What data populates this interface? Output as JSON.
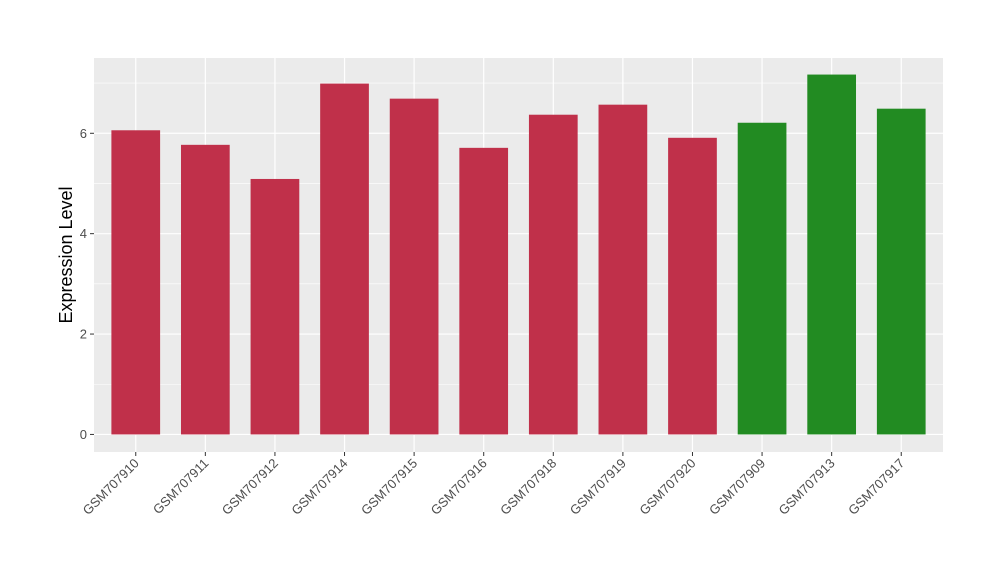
{
  "chart_data": {
    "type": "bar",
    "title": "",
    "xlabel": "",
    "ylabel": "Expression Level",
    "ylim": [
      -0.35,
      7.5
    ],
    "yticks": [
      0,
      2,
      4,
      6
    ],
    "grid": true,
    "legend": "none",
    "categories": [
      "GSM707910",
      "GSM707911",
      "GSM707912",
      "GSM707914",
      "GSM707915",
      "GSM707916",
      "GSM707918",
      "GSM707919",
      "GSM707920",
      "GSM707909",
      "GSM707913",
      "GSM707917"
    ],
    "values": [
      6.06,
      5.77,
      5.09,
      6.99,
      6.69,
      5.71,
      6.37,
      6.57,
      5.91,
      6.21,
      7.17,
      6.49
    ],
    "colors": [
      "#C0304A",
      "#C0304A",
      "#C0304A",
      "#C0304A",
      "#C0304A",
      "#C0304A",
      "#C0304A",
      "#C0304A",
      "#C0304A",
      "#228B22",
      "#228B22",
      "#228B22"
    ],
    "panel_background": "#EBEBEB",
    "grid_color": "#FFFFFF"
  }
}
